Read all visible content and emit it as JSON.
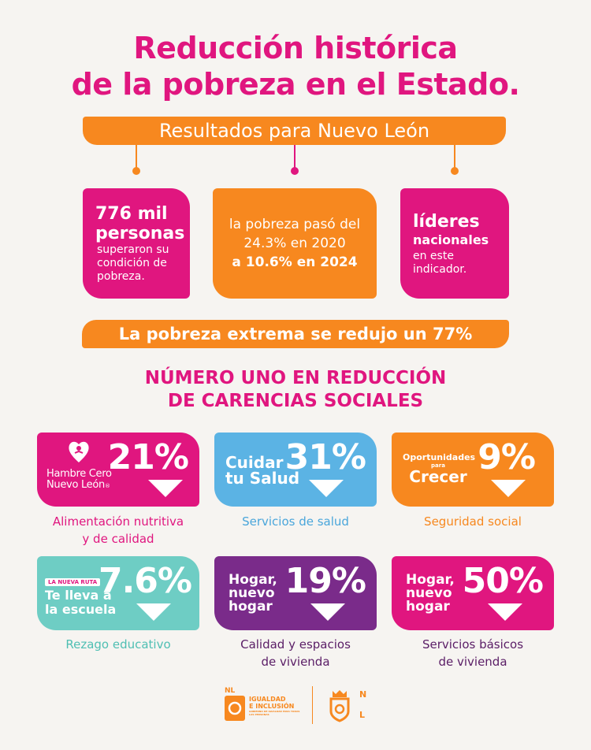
{
  "title": {
    "line1": "Reducción histórica",
    "line2": "de la pobreza en el Estado."
  },
  "results_banner": "Resultados para Nuevo León",
  "cards": {
    "card1": {
      "line1": "776 mil",
      "line2": "personas",
      "line3": "superaron su",
      "line4": "condición de",
      "line5": "pobreza."
    },
    "card2": {
      "line1": "la pobreza pasó del",
      "line2": "24.3% en 2020",
      "line3": "a 10.6% en 2024"
    },
    "card3": {
      "line1": "líderes",
      "line2": "nacionales",
      "line3": "en este",
      "line4": "indicador."
    }
  },
  "extreme_banner": "La pobreza extrema se redujo un 77%",
  "subtitle": {
    "line1": "NÚMERO UNO EN REDUCCIÓN",
    "line2": "DE CARENCIAS SOCIALES"
  },
  "indicators": [
    {
      "program_line1": "Hambre Cero",
      "program_line2": "Nuevo León",
      "program_mark": "®",
      "value": "21%",
      "label_line1": "Alimentación nutritiva",
      "label_line2": "y de calidad",
      "color": "#e0167f",
      "label_color": "#e0167f"
    },
    {
      "program_line1": "Cuidar",
      "program_line2": "tu Salud",
      "value": "31%",
      "label_line1": "Servicios de salud",
      "label_line2": "",
      "color": "#5bb3e4",
      "label_color": "#4aa6db"
    },
    {
      "program_line1": "Oportunidades",
      "program_line2": "para",
      "program_line3": "Crecer",
      "value": "9%",
      "label_line1": "Seguridad social",
      "label_line2": "",
      "color": "#f7881f",
      "label_color": "#f7881f"
    },
    {
      "program_line1": "LA NUEVA RUTA",
      "program_line2": "Te lleva a",
      "program_line3": "la escuela",
      "value": "7.6%",
      "label_line1": "Rezago educativo",
      "label_line2": "",
      "color": "#6ecdc4",
      "label_color": "#4fbfb3"
    },
    {
      "program_line1": "Hogar,",
      "program_line2": "nuevo",
      "program_line3": "hogar",
      "value": "19%",
      "label_line1": "Calidad y espacios",
      "label_line2": "de vivienda",
      "color": "#7a2b8a",
      "label_color": "#5a1d66"
    },
    {
      "program_line1": "Hogar,",
      "program_line2": "nuevo",
      "program_line3": "hogar",
      "value": "50%",
      "label_line1": "Servicios básicos",
      "label_line2": "de vivienda",
      "color": "#e0167f",
      "label_color": "#5a1d66"
    }
  ],
  "footer": {
    "logo1_mark": "NL",
    "logo1_line1": "IGUALDAD",
    "logo1_line2": "E INCLUSIÓN",
    "logo1_line3": "GOBIERNO DE IGUALDAD PARA TODAS LAS PERSONAS",
    "logo2_n": "N",
    "logo2_l": "L"
  }
}
